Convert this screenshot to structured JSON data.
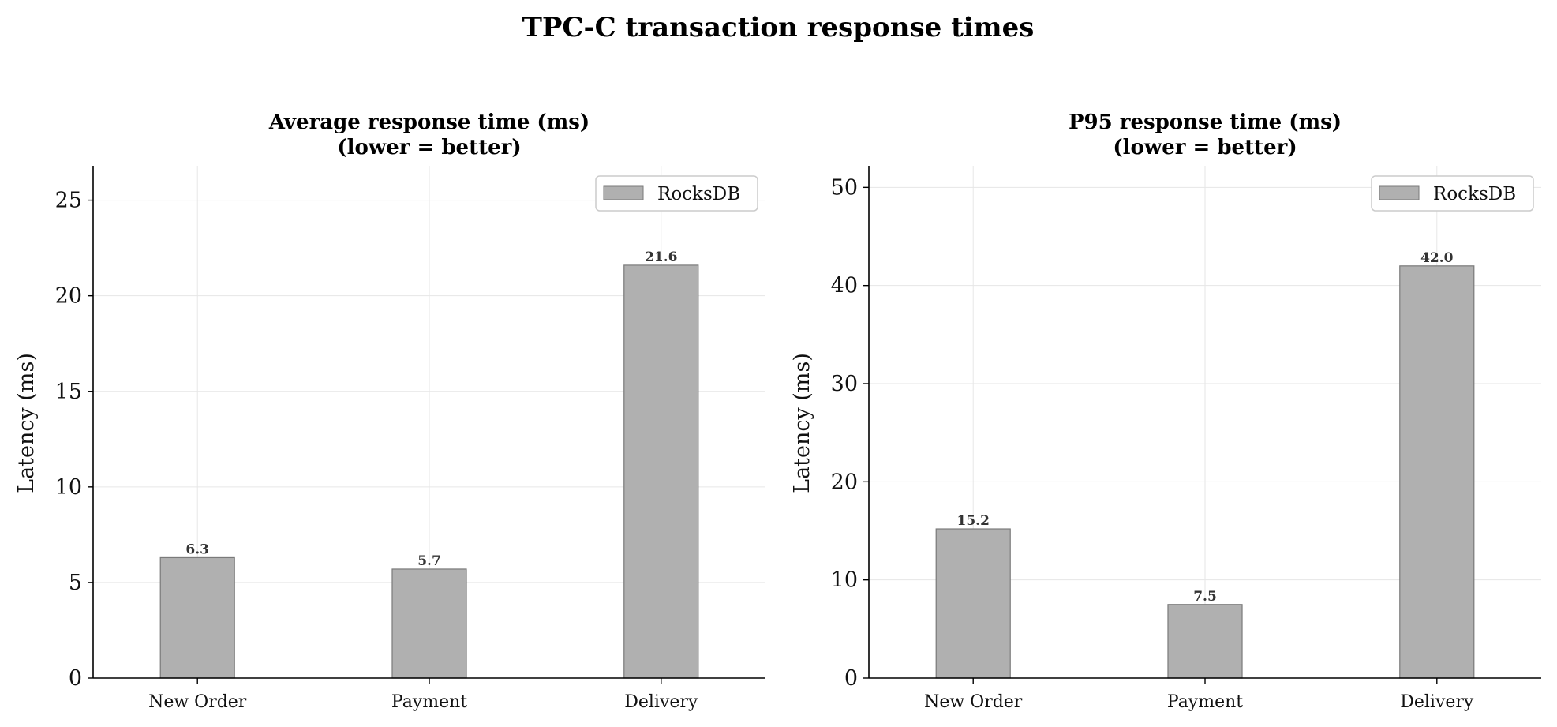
{
  "figure_title": "TPC-C transaction response times",
  "colors": {
    "bar_fill": "#b0b0b0",
    "bar_edge": "#7a7a7a",
    "grid": "#e6e6e6",
    "axis": "#000000",
    "legend_border": "#cccccc"
  },
  "chart_data": [
    {
      "type": "bar",
      "title_lines": [
        "Average response time (ms)",
        "(lower = better)"
      ],
      "categories": [
        "New Order",
        "Payment",
        "Delivery"
      ],
      "series": [
        {
          "name": "RocksDB",
          "values": [
            6.3,
            5.7,
            21.6
          ]
        }
      ],
      "data_labels": [
        "6.3",
        "5.7",
        "21.6"
      ],
      "xlabel": "",
      "ylabel": "Latency (ms)",
      "ylim": [
        0,
        26.8
      ],
      "yticks": [
        0,
        5,
        10,
        15,
        20,
        25
      ],
      "grid": true,
      "legend": "top-right"
    },
    {
      "type": "bar",
      "title_lines": [
        "P95 response time (ms)",
        "(lower = better)"
      ],
      "categories": [
        "New Order",
        "Payment",
        "Delivery"
      ],
      "series": [
        {
          "name": "RocksDB",
          "values": [
            15.2,
            7.5,
            42.0
          ]
        }
      ],
      "data_labels": [
        "15.2",
        "7.5",
        "42.0"
      ],
      "xlabel": "",
      "ylabel": "Latency (ms)",
      "ylim": [
        0,
        52.2
      ],
      "yticks": [
        0,
        10,
        20,
        30,
        40,
        50
      ],
      "grid": true,
      "legend": "top-right"
    }
  ]
}
